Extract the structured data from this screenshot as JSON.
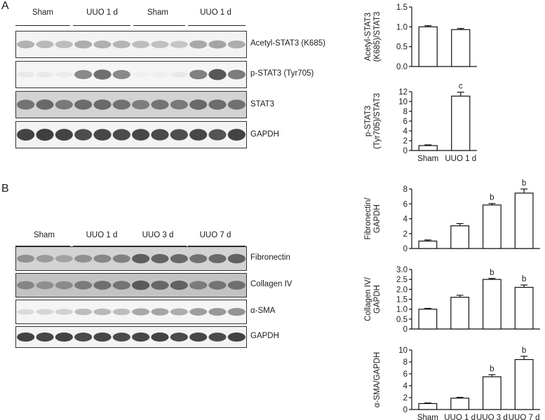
{
  "panels": {
    "a": {
      "letter": "A",
      "groups": [
        "Sham",
        "UUO 1 d",
        "Sham",
        "UUO 1 d"
      ],
      "blots": [
        {
          "label": "Acetyl-STAT3 (K685)",
          "lanes": [
            0.35,
            0.32,
            0.3,
            0.38,
            0.36,
            0.34,
            0.3,
            0.28,
            0.26,
            0.4,
            0.42,
            0.38
          ],
          "bg": 0.06
        },
        {
          "label": "p-STAT3 (Tyr705)",
          "lanes": [
            0.08,
            0.08,
            0.07,
            0.55,
            0.68,
            0.55,
            0.05,
            0.06,
            0.08,
            0.6,
            0.8,
            0.62
          ],
          "bg": 0.05
        },
        {
          "label": "STAT3",
          "lanes": [
            0.65,
            0.7,
            0.62,
            0.68,
            0.7,
            0.66,
            0.6,
            0.65,
            0.62,
            0.7,
            0.68,
            0.66
          ],
          "bg": 0.22
        },
        {
          "label": "GAPDH",
          "lanes": [
            0.9,
            0.92,
            0.9,
            0.85,
            0.88,
            0.86,
            0.88,
            0.86,
            0.84,
            0.88,
            0.82,
            0.9
          ],
          "bg": 0.06
        }
      ]
    },
    "b": {
      "letter": "B",
      "groups": [
        "Sham",
        "UUO 1 d",
        "UUO 3 d",
        "UUO 7 d"
      ],
      "blots": [
        {
          "label": "Fibronectin",
          "lanes": [
            0.5,
            0.45,
            0.42,
            0.5,
            0.55,
            0.58,
            0.75,
            0.72,
            0.7,
            0.66,
            0.7,
            0.74
          ],
          "bg": 0.22
        },
        {
          "label": "Collagen IV",
          "lanes": [
            0.55,
            0.5,
            0.52,
            0.6,
            0.66,
            0.64,
            0.76,
            0.7,
            0.72,
            0.6,
            0.64,
            0.66
          ],
          "bg": 0.3
        },
        {
          "label": "α-SMA",
          "lanes": [
            0.15,
            0.18,
            0.2,
            0.3,
            0.32,
            0.3,
            0.4,
            0.42,
            0.38,
            0.45,
            0.48,
            0.5
          ],
          "bg": 0.05
        },
        {
          "label": "GAPDH",
          "lanes": [
            0.9,
            0.88,
            0.9,
            0.86,
            0.88,
            0.86,
            0.88,
            0.9,
            0.86,
            0.88,
            0.86,
            0.9
          ],
          "bg": 0.06
        }
      ]
    }
  },
  "chart_data": [
    {
      "type": "bar",
      "categories": [
        "",
        ""
      ],
      "values": [
        1.0,
        0.93
      ],
      "errors": [
        0.03,
        0.03
      ],
      "annotations": [
        "",
        ""
      ],
      "ylabel_lines": [
        "Acetyl-STAT3",
        "(K685)/STAT3"
      ],
      "ylim": [
        0,
        1.5
      ],
      "ticks": [
        0.0,
        0.5,
        1.0,
        1.5
      ],
      "tick_labels": [
        "0.0",
        "0.5",
        "1.0",
        "1.5"
      ]
    },
    {
      "type": "bar",
      "categories": [
        "Sham",
        "UUO 1 d"
      ],
      "values": [
        1.0,
        11.1
      ],
      "errors": [
        0.15,
        0.8
      ],
      "annotations": [
        "",
        "c"
      ],
      "ylabel_lines": [
        "p-STAT3",
        "(Tyr705)/STAT3"
      ],
      "ylim": [
        0,
        12
      ],
      "ticks": [
        0,
        2,
        4,
        6,
        8,
        10,
        12
      ],
      "tick_labels": [
        "0",
        "2",
        "4",
        "6",
        "8",
        "10",
        "12"
      ]
    },
    {
      "type": "bar",
      "categories": [
        "",
        "",
        "",
        ""
      ],
      "values": [
        1.0,
        3.05,
        5.85,
        7.45
      ],
      "errors": [
        0.15,
        0.3,
        0.2,
        0.55
      ],
      "annotations": [
        "",
        "",
        "b",
        "b"
      ],
      "ylabel_lines": [
        "Fibronectin/",
        "GAPDH"
      ],
      "ylim": [
        0,
        8
      ],
      "ticks": [
        0,
        2,
        4,
        6,
        8
      ],
      "tick_labels": [
        "0",
        "2",
        "4",
        "6",
        "8"
      ]
    },
    {
      "type": "bar",
      "categories": [
        "",
        "",
        "",
        ""
      ],
      "values": [
        1.0,
        1.6,
        2.5,
        2.1
      ],
      "errors": [
        0.04,
        0.1,
        0.05,
        0.12
      ],
      "annotations": [
        "",
        "",
        "b",
        "b"
      ],
      "ylabel_lines": [
        "Collagen IV/",
        "GAPDH"
      ],
      "ylim": [
        0,
        3
      ],
      "ticks": [
        0,
        0.5,
        1.0,
        1.5,
        2.0,
        2.5,
        3.0
      ],
      "tick_labels": [
        "0",
        "0.5",
        "1.0",
        "1.5",
        "2.0",
        "2.5",
        "3.0"
      ]
    },
    {
      "type": "bar",
      "categories": [
        "Sham",
        "UUO 1 d",
        "UUO 3 d",
        "UUO 7 d"
      ],
      "values": [
        1.0,
        1.9,
        5.5,
        8.4
      ],
      "errors": [
        0.1,
        0.15,
        0.35,
        0.55
      ],
      "annotations": [
        "",
        "",
        "b",
        "b"
      ],
      "ylabel_lines": [
        "α-SMA/GAPDH"
      ],
      "ylim": [
        0,
        10
      ],
      "ticks": [
        0,
        2,
        4,
        6,
        8,
        10
      ],
      "tick_labels": [
        "0",
        "2",
        "4",
        "6",
        "8",
        "10"
      ]
    }
  ]
}
